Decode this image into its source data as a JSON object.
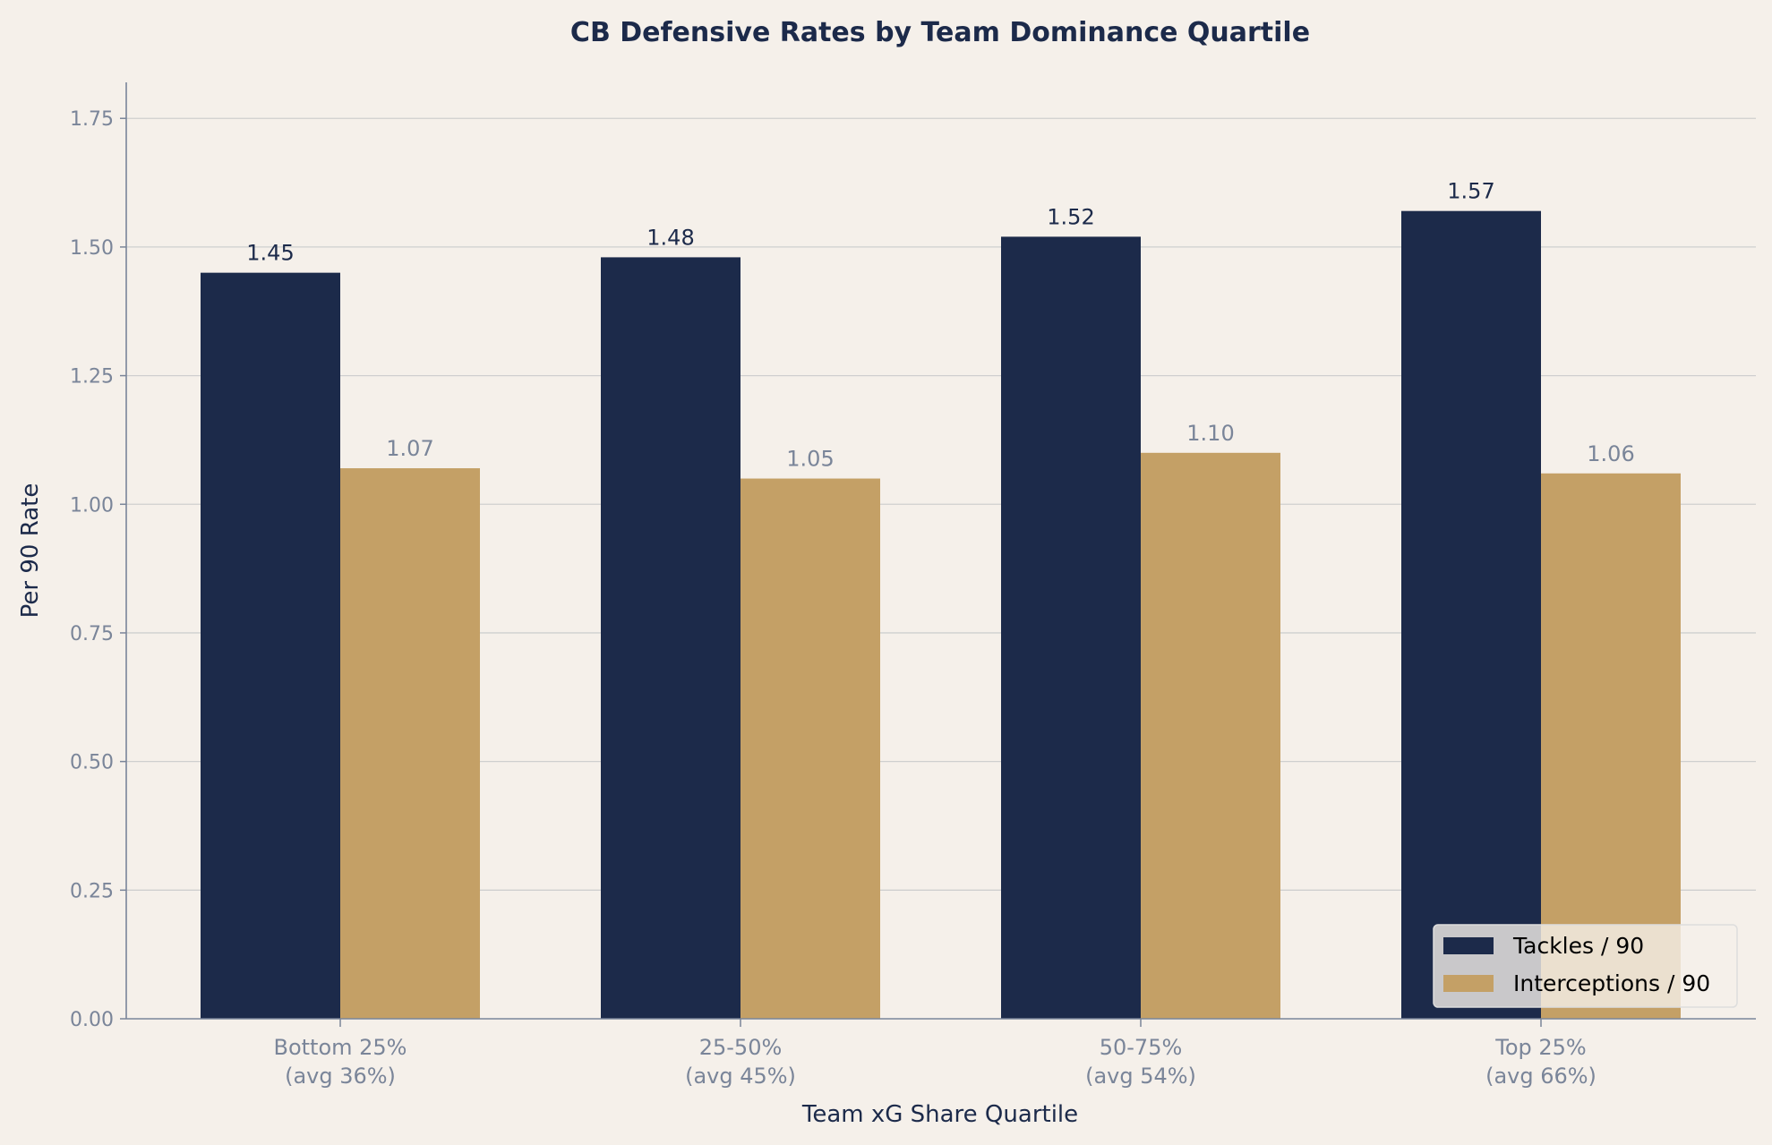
{
  "chart_data": {
    "type": "bar",
    "title": "CB Defensive Rates by Team Dominance Quartile",
    "xlabel": "Team xG Share Quartile",
    "ylabel": "Per 90 Rate",
    "categories": [
      "Bottom 25%\n(avg 36%)",
      "25-50%\n(avg 45%)",
      "50-75%\n(avg 54%)",
      "Top 25%\n(avg 66%)"
    ],
    "series": [
      {
        "name": "Tackles / 90",
        "values": [
          1.45,
          1.48,
          1.52,
          1.57
        ],
        "labels": [
          "1.45",
          "1.48",
          "1.52",
          "1.57"
        ],
        "color": "#1c2a4a",
        "label_color": "#1c2a4a"
      },
      {
        "name": "Interceptions / 90",
        "values": [
          1.07,
          1.05,
          1.1,
          1.06
        ],
        "labels": [
          "1.07",
          "1.05",
          "1.10",
          "1.06"
        ],
        "color": "#c4a066",
        "label_color": "#7a8599"
      }
    ],
    "ylim": [
      0,
      1.82
    ],
    "yticks": [
      0,
      0.25,
      0.5,
      0.75,
      1.0,
      1.25,
      1.5,
      1.75
    ],
    "ytick_labels": [
      "0.00",
      "0.25",
      "0.50",
      "0.75",
      "1.00",
      "1.25",
      "1.50",
      "1.75"
    ],
    "grid": "y",
    "legend_position": "lower-right",
    "colors": {
      "background": "#f5f0ea",
      "text": "#1c2a4a",
      "tick": "#7a8599",
      "grid": "#cfcfcf"
    }
  }
}
